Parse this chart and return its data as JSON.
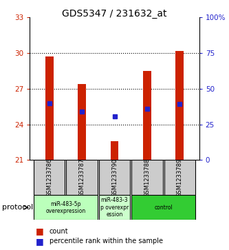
{
  "title": "GDS5347 / 231632_at",
  "samples": [
    "GSM1233786",
    "GSM1233787",
    "GSM1233790",
    "GSM1233788",
    "GSM1233789"
  ],
  "bar_bottoms": [
    21,
    21,
    21,
    21,
    21
  ],
  "bar_tops": [
    29.7,
    27.4,
    22.6,
    28.5,
    30.2
  ],
  "percentile_values": [
    25.8,
    25.1,
    24.7,
    25.3,
    25.7
  ],
  "ylim": [
    21,
    33
  ],
  "yticks": [
    21,
    24,
    27,
    30,
    33
  ],
  "right_ylabels": [
    "0",
    "25",
    "50",
    "75",
    "100%"
  ],
  "bar_color": "#cc2200",
  "percentile_color": "#2222cc",
  "bg_color": "#ffffff",
  "groups": [
    {
      "label": "miR-483-5p\noverexpression",
      "indices": [
        0,
        1
      ],
      "color": "#bbffbb"
    },
    {
      "label": "miR-483-3\np overexpr\nession",
      "indices": [
        2
      ],
      "color": "#ccffcc"
    },
    {
      "label": "control",
      "indices": [
        3,
        4
      ],
      "color": "#33cc33"
    }
  ],
  "protocol_label": "protocol",
  "legend_count_label": "count",
  "legend_percentile_label": "percentile rank within the sample",
  "bar_width": 0.25,
  "tick_fontsize": 7.5,
  "title_fontsize": 10,
  "left_tick_color": "#cc2200",
  "right_tick_color": "#2222cc",
  "sample_box_color": "#cccccc",
  "dotted_lines": [
    24,
    27,
    30
  ]
}
